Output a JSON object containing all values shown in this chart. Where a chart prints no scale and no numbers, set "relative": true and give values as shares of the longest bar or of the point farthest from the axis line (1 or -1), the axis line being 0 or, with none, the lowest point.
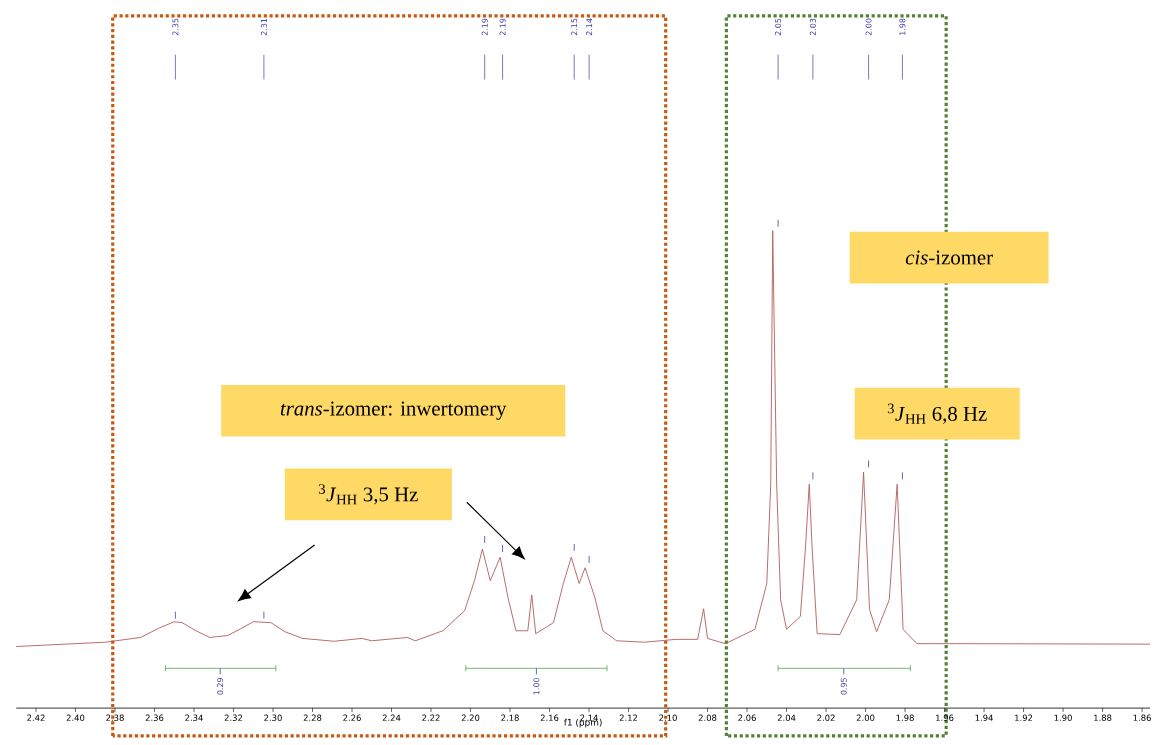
{
  "chart_data": {
    "type": "line",
    "relative": true,
    "xlabel": "f1 (ppm)",
    "xlim": [
      2.43,
      1.856
    ],
    "xticks": [
      2.42,
      {
        "value": 2.4,
        "label": "2.40"
      },
      2.38,
      2.36,
      2.34,
      2.32,
      {
        "value": 2.3,
        "label": "2.30"
      },
      2.28,
      2.26,
      2.24,
      2.22,
      {
        "value": 2.2,
        "label": "2.20"
      },
      2.18,
      2.16,
      2.14,
      2.12,
      {
        "value": 2.1,
        "label": "2.10"
      },
      2.08,
      2.06,
      2.04,
      2.02,
      {
        "value": 2.0,
        "label": "2.00"
      },
      1.98,
      1.96,
      1.94,
      1.92,
      {
        "value": 1.9,
        "label": "1.90"
      },
      1.88,
      1.86
    ],
    "series": [
      {
        "color": "#b35c5c",
        "x": [
          2.43,
          2.385,
          2.367,
          2.358,
          2.35,
          2.346,
          2.339,
          2.332,
          2.323,
          2.316,
          2.31,
          2.301,
          2.294,
          2.285,
          2.269,
          2.255,
          2.25,
          2.232,
          2.228,
          2.214,
          2.203,
          2.198,
          2.194,
          2.19,
          2.185,
          2.181,
          2.177,
          2.171,
          2.169,
          2.167,
          2.158,
          2.153,
          2.149,
          2.145,
          2.142,
          2.137,
          2.133,
          2.126,
          2.112,
          2.096,
          2.085,
          2.082,
          2.08,
          2.071,
          2.056,
          2.05,
          2.048,
          2.047,
          2.045,
          2.043,
          2.04,
          2.033,
          2.0305,
          2.0285,
          2.027,
          2.0245,
          2.013,
          2.0045,
          2.001,
          1.998,
          1.9944,
          1.988,
          1.984,
          1.981,
          1.974,
          1.954,
          1.856
        ],
        "values": [
          0.129,
          0.138,
          0.148,
          0.167,
          0.181,
          0.179,
          0.162,
          0.148,
          0.152,
          0.167,
          0.181,
          0.179,
          0.16,
          0.146,
          0.14,
          0.146,
          0.141,
          0.148,
          0.141,
          0.162,
          0.204,
          0.267,
          0.333,
          0.267,
          0.316,
          0.231,
          0.162,
          0.162,
          0.237,
          0.156,
          0.179,
          0.261,
          0.316,
          0.261,
          0.294,
          0.231,
          0.162,
          0.141,
          0.138,
          0.144,
          0.144,
          0.208,
          0.146,
          0.135,
          0.165,
          0.261,
          0.469,
          1,
          0.469,
          0.227,
          0.165,
          0.192,
          0.331,
          0.469,
          0.331,
          0.156,
          0.154,
          0.227,
          0.494,
          0.207,
          0.16,
          0.227,
          0.469,
          0.165,
          0.135,
          0.135,
          0.134
        ]
      }
    ],
    "annotations": [
      "2.35",
      "2.31",
      "2.19",
      "2.19",
      "2.15",
      "2.14",
      "2.05",
      "2.03",
      "2.00",
      "1.98",
      "0.29",
      "1.00",
      "0.95",
      "*cis*-izomer",
      "*trans*-izomer: inwertomery",
      "$^{3}$*J*$_{HH}$ 6,8 Hz",
      "$^{3}$*J*$_{HH}$ 3,5 Hz"
    ]
  }
}
